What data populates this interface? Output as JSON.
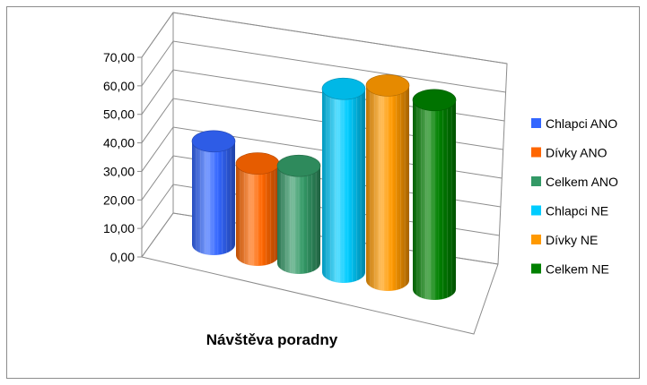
{
  "chart_data": {
    "type": "bar",
    "style": "3d-cylinder",
    "title": "Návštěva poradny",
    "xlabel": "",
    "ylabel": "",
    "ylim": [
      0,
      70
    ],
    "ytick_labels": [
      "0,00",
      "10,00",
      "20,00",
      "30,00",
      "40,00",
      "50,00",
      "60,00",
      "70,00"
    ],
    "grid": true,
    "legend_position": "right",
    "series": [
      {
        "name": "Chlapci ANO",
        "values": [
          36
        ],
        "color": "#3366ff"
      },
      {
        "name": "Dívky ANO",
        "values": [
          32
        ],
        "color": "#ff6600"
      },
      {
        "name": "Celkem ANO",
        "values": [
          34
        ],
        "color": "#339966"
      },
      {
        "name": "Chlapci NE",
        "values": [
          64
        ],
        "color": "#00ccff"
      },
      {
        "name": "Dívky NE",
        "values": [
          68
        ],
        "color": "#ff9900"
      },
      {
        "name": "Celkem NE",
        "values": [
          66
        ],
        "color": "#008000"
      }
    ]
  }
}
